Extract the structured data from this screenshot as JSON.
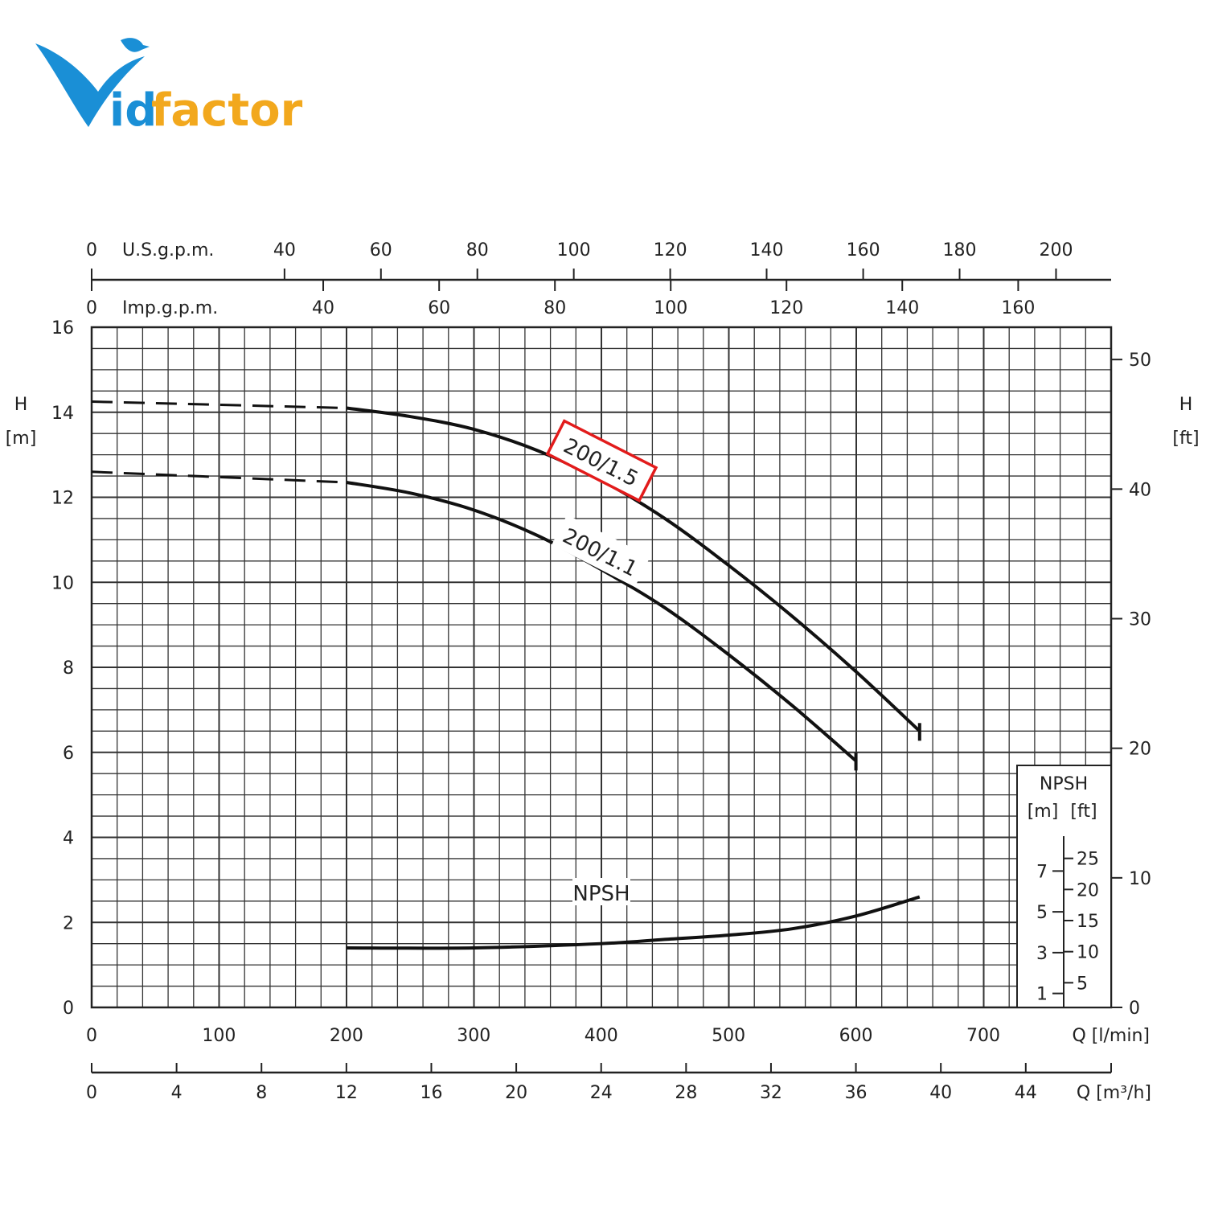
{
  "brand": {
    "name": "Vidfactor",
    "letter_v": "V",
    "wordmark_blue": "id",
    "wordmark_orange": "factor",
    "colors": {
      "blue": "#1a8fd6",
      "orange": "#f2a81d"
    }
  },
  "chart_data": {
    "type": "line",
    "x_primary": {
      "label": "Q [l/min]",
      "range": [
        0,
        800
      ],
      "ticks": [
        "0",
        "100",
        "200",
        "300",
        "400",
        "500",
        "600",
        "700"
      ]
    },
    "x_m3h": {
      "label": "Q [m³/h]",
      "range": [
        0,
        48
      ],
      "ticks": [
        "0",
        "4",
        "8",
        "12",
        "16",
        "20",
        "24",
        "28",
        "32",
        "36",
        "40",
        "44"
      ]
    },
    "x_usgpm": {
      "label": "U.S.g.p.m.",
      "ticks": [
        [
          "0",
          0
        ],
        [
          "40",
          151.4
        ],
        [
          "60",
          227.1
        ],
        [
          "80",
          302.8
        ],
        [
          "100",
          378.5
        ],
        [
          "120",
          454.2
        ],
        [
          "140",
          529.9
        ],
        [
          "160",
          605.7
        ],
        [
          "180",
          681.4
        ],
        [
          "200",
          757.1
        ]
      ]
    },
    "x_impgpm": {
      "label": "Imp.g.p.m.",
      "ticks": [
        [
          "0",
          0
        ],
        [
          "40",
          181.8
        ],
        [
          "60",
          272.8
        ],
        [
          "80",
          363.7
        ],
        [
          "100",
          454.6
        ],
        [
          "120",
          545.5
        ],
        [
          "140",
          636.4
        ],
        [
          "160",
          727.4
        ]
      ]
    },
    "y_left": {
      "label_top": "H",
      "label_bottom": "[m]",
      "range": [
        0,
        16
      ],
      "ticks": [
        "0",
        "2",
        "4",
        "6",
        "8",
        "10",
        "12",
        "14",
        "16"
      ]
    },
    "y_right": {
      "label_top": "H",
      "label_bottom": "[ft]",
      "ticks": [
        [
          "0",
          0
        ],
        [
          "10",
          3.048
        ],
        [
          "20",
          6.096
        ],
        [
          "30",
          9.144
        ],
        [
          "40",
          12.192
        ],
        [
          "50",
          15.24
        ]
      ]
    },
    "grid": true,
    "series": [
      {
        "name": "200/1.5",
        "highlighted": true,
        "dashed_segment": {
          "x": [
            0,
            200
          ],
          "y": [
            14.25,
            14.1
          ]
        },
        "x": [
          200,
          250,
          300,
          350,
          400,
          450,
          500,
          550,
          600,
          650
        ],
        "y": [
          14.1,
          13.9,
          13.6,
          13.1,
          12.4,
          11.5,
          10.4,
          9.2,
          7.9,
          6.5
        ]
      },
      {
        "name": "200/1.1",
        "highlighted": false,
        "dashed_segment": {
          "x": [
            0,
            200
          ],
          "y": [
            12.6,
            12.35
          ]
        },
        "x": [
          200,
          250,
          300,
          350,
          400,
          450,
          500,
          550,
          600
        ],
        "y": [
          12.35,
          12.1,
          11.7,
          11.1,
          10.3,
          9.4,
          8.3,
          7.1,
          5.8
        ]
      },
      {
        "name": "NPSH",
        "highlighted": false,
        "x": [
          200,
          300,
          400,
          450,
          500,
          550,
          600,
          650
        ],
        "y": [
          1.4,
          1.4,
          1.5,
          1.6,
          1.7,
          1.85,
          2.15,
          2.6
        ]
      }
    ],
    "npsh_inset": {
      "title": "NPSH",
      "unit_m": "[m]",
      "unit_ft": "[ft]",
      "m_ticks": [
        "1",
        "3",
        "5",
        "7"
      ],
      "ft_ticks": [
        "5",
        "10",
        "15",
        "20",
        "25"
      ]
    }
  }
}
